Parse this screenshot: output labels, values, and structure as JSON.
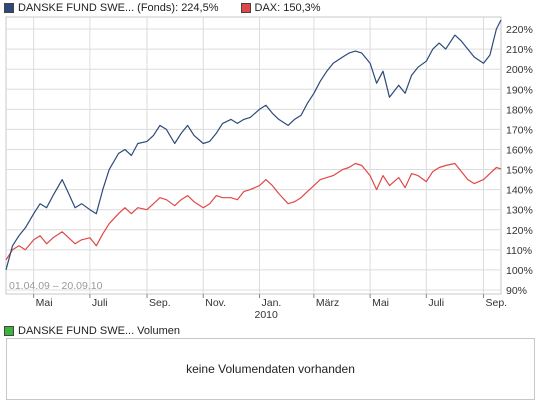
{
  "legend": {
    "fund_label": "DANSKE FUND SWE... (Fonds): 224,5%",
    "dax_label": "DAX: 150,3%"
  },
  "range_label": "01.04.09 – 20.09.10",
  "volume": {
    "legend_label": "DANSKE FUND SWE... Volumen",
    "empty_text": "keine Volumendaten vorhanden"
  },
  "colors": {
    "fund": "#2d4a7a",
    "dax": "#e04848",
    "volume": "#3cb43c",
    "grid": "#dcdcdc"
  },
  "chart_data": {
    "type": "line",
    "x_tick_labels": [
      "Mai",
      "Juli",
      "Sep.",
      "Nov.",
      "Jan.",
      "März",
      "Mai",
      "Juli",
      "Sep."
    ],
    "x_sublabel": "2010",
    "y_tick_labels": [
      "90%",
      "100%",
      "110%",
      "120%",
      "130%",
      "140%",
      "150%",
      "160%",
      "170%",
      "180%",
      "190%",
      "200%",
      "210%",
      "220%"
    ],
    "ylim": [
      88,
      226
    ],
    "grid": true,
    "legend_position": "top-left",
    "x_range": [
      "2009-04-01",
      "2010-09-20"
    ],
    "series": [
      {
        "name": "DANSKE FUND SWE... (Fonds)",
        "points": [
          [
            "2009-04-01",
            100
          ],
          [
            "2009-04-08",
            112
          ],
          [
            "2009-04-15",
            117
          ],
          [
            "2009-04-22",
            121
          ],
          [
            "2009-05-01",
            128
          ],
          [
            "2009-05-08",
            133
          ],
          [
            "2009-05-15",
            131
          ],
          [
            "2009-05-22",
            137
          ],
          [
            "2009-06-01",
            145
          ],
          [
            "2009-06-08",
            138
          ],
          [
            "2009-06-15",
            131
          ],
          [
            "2009-06-22",
            133
          ],
          [
            "2009-07-01",
            130
          ],
          [
            "2009-07-08",
            128
          ],
          [
            "2009-07-15",
            140
          ],
          [
            "2009-07-22",
            150
          ],
          [
            "2009-08-01",
            158
          ],
          [
            "2009-08-08",
            160
          ],
          [
            "2009-08-15",
            157
          ],
          [
            "2009-08-22",
            163
          ],
          [
            "2009-09-01",
            164
          ],
          [
            "2009-09-08",
            167
          ],
          [
            "2009-09-15",
            172
          ],
          [
            "2009-09-22",
            170
          ],
          [
            "2009-10-01",
            163
          ],
          [
            "2009-10-08",
            168
          ],
          [
            "2009-10-15",
            172
          ],
          [
            "2009-10-22",
            167
          ],
          [
            "2009-11-01",
            163
          ],
          [
            "2009-11-08",
            164
          ],
          [
            "2009-11-15",
            168
          ],
          [
            "2009-11-22",
            173
          ],
          [
            "2009-12-01",
            175
          ],
          [
            "2009-12-08",
            173
          ],
          [
            "2009-12-15",
            175
          ],
          [
            "2009-12-22",
            176
          ],
          [
            "2010-01-01",
            180
          ],
          [
            "2010-01-08",
            182
          ],
          [
            "2010-01-15",
            178
          ],
          [
            "2010-01-22",
            175
          ],
          [
            "2010-02-01",
            172
          ],
          [
            "2010-02-08",
            175
          ],
          [
            "2010-02-15",
            177
          ],
          [
            "2010-02-22",
            183
          ],
          [
            "2010-03-01",
            188
          ],
          [
            "2010-03-08",
            194
          ],
          [
            "2010-03-15",
            199
          ],
          [
            "2010-03-22",
            203
          ],
          [
            "2010-04-01",
            206
          ],
          [
            "2010-04-08",
            208
          ],
          [
            "2010-04-15",
            209
          ],
          [
            "2010-04-22",
            208
          ],
          [
            "2010-05-01",
            203
          ],
          [
            "2010-05-08",
            193
          ],
          [
            "2010-05-15",
            199
          ],
          [
            "2010-05-22",
            186
          ],
          [
            "2010-06-01",
            192
          ],
          [
            "2010-06-08",
            188
          ],
          [
            "2010-06-15",
            197
          ],
          [
            "2010-06-22",
            201
          ],
          [
            "2010-07-01",
            204
          ],
          [
            "2010-07-08",
            210
          ],
          [
            "2010-07-15",
            213
          ],
          [
            "2010-07-22",
            210
          ],
          [
            "2010-08-01",
            217
          ],
          [
            "2010-08-08",
            214
          ],
          [
            "2010-08-15",
            210
          ],
          [
            "2010-08-22",
            206
          ],
          [
            "2010-09-01",
            203
          ],
          [
            "2010-09-08",
            207
          ],
          [
            "2010-09-15",
            220
          ],
          [
            "2010-09-20",
            224.5
          ]
        ]
      },
      {
        "name": "DAX",
        "points": [
          [
            "2009-04-01",
            105
          ],
          [
            "2009-04-08",
            110
          ],
          [
            "2009-04-15",
            112
          ],
          [
            "2009-04-22",
            110
          ],
          [
            "2009-05-01",
            115
          ],
          [
            "2009-05-08",
            117
          ],
          [
            "2009-05-15",
            113
          ],
          [
            "2009-05-22",
            116
          ],
          [
            "2009-06-01",
            119
          ],
          [
            "2009-06-08",
            116
          ],
          [
            "2009-06-15",
            113
          ],
          [
            "2009-06-22",
            115
          ],
          [
            "2009-07-01",
            116
          ],
          [
            "2009-07-08",
            112
          ],
          [
            "2009-07-15",
            118
          ],
          [
            "2009-07-22",
            123
          ],
          [
            "2009-08-01",
            128
          ],
          [
            "2009-08-08",
            131
          ],
          [
            "2009-08-15",
            128
          ],
          [
            "2009-08-22",
            131
          ],
          [
            "2009-09-01",
            130
          ],
          [
            "2009-09-08",
            133
          ],
          [
            "2009-09-15",
            136
          ],
          [
            "2009-09-22",
            135
          ],
          [
            "2009-10-01",
            132
          ],
          [
            "2009-10-08",
            135
          ],
          [
            "2009-10-15",
            137
          ],
          [
            "2009-10-22",
            134
          ],
          [
            "2009-11-01",
            131
          ],
          [
            "2009-11-08",
            133
          ],
          [
            "2009-11-15",
            137
          ],
          [
            "2009-11-22",
            136
          ],
          [
            "2009-12-01",
            136
          ],
          [
            "2009-12-08",
            135
          ],
          [
            "2009-12-15",
            139
          ],
          [
            "2009-12-22",
            140
          ],
          [
            "2010-01-01",
            142
          ],
          [
            "2010-01-08",
            145
          ],
          [
            "2010-01-15",
            142
          ],
          [
            "2010-01-22",
            138
          ],
          [
            "2010-02-01",
            133
          ],
          [
            "2010-02-08",
            134
          ],
          [
            "2010-02-15",
            136
          ],
          [
            "2010-02-22",
            139
          ],
          [
            "2010-03-01",
            142
          ],
          [
            "2010-03-08",
            145
          ],
          [
            "2010-03-15",
            146
          ],
          [
            "2010-03-22",
            147
          ],
          [
            "2010-04-01",
            150
          ],
          [
            "2010-04-08",
            151
          ],
          [
            "2010-04-15",
            153
          ],
          [
            "2010-04-22",
            152
          ],
          [
            "2010-05-01",
            147
          ],
          [
            "2010-05-08",
            140
          ],
          [
            "2010-05-15",
            147
          ],
          [
            "2010-05-22",
            142
          ],
          [
            "2010-06-01",
            146
          ],
          [
            "2010-06-08",
            141
          ],
          [
            "2010-06-15",
            148
          ],
          [
            "2010-06-22",
            147
          ],
          [
            "2010-07-01",
            144
          ],
          [
            "2010-07-08",
            149
          ],
          [
            "2010-07-15",
            151
          ],
          [
            "2010-07-22",
            152
          ],
          [
            "2010-08-01",
            153
          ],
          [
            "2010-08-08",
            149
          ],
          [
            "2010-08-15",
            145
          ],
          [
            "2010-08-22",
            143
          ],
          [
            "2010-09-01",
            145
          ],
          [
            "2010-09-08",
            148
          ],
          [
            "2010-09-15",
            151
          ],
          [
            "2010-09-20",
            150.3
          ]
        ]
      }
    ]
  }
}
